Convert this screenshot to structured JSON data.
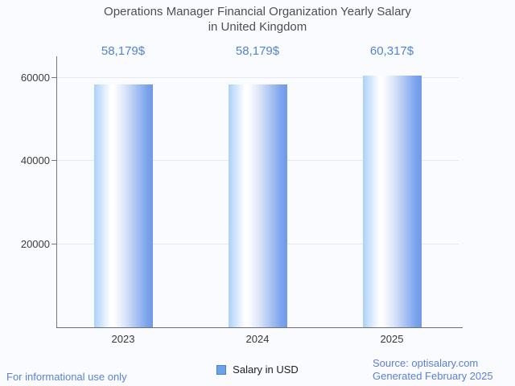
{
  "title": {
    "line1": "Operations Manager Financial Organization Yearly Salary",
    "line2": "in United Kingdom"
  },
  "chart_data": {
    "type": "bar",
    "title": "Operations Manager Financial Organization Yearly Salary in United Kingdom",
    "categories": [
      "2023",
      "2024",
      "2025"
    ],
    "values": [
      58179,
      58179,
      60317
    ],
    "value_labels": [
      "58,179$",
      "58,179$",
      "60,317$"
    ],
    "series_name": "Salary in USD",
    "xlabel": "",
    "ylabel": "",
    "ylim": [
      0,
      65000
    ],
    "yticks": [
      20000,
      40000,
      60000
    ],
    "ytick_labels": [
      "20000",
      "40000",
      "60000"
    ],
    "grid": true,
    "legend": {
      "label": "Salary in USD",
      "position": "bottom"
    },
    "colors": {
      "bar_gradient": [
        "#abd1f8",
        "#ffffff",
        "#7aa3ec"
      ],
      "value_label": "#5283d1",
      "legend_swatch_fill": "#6ba3ea",
      "legend_swatch_border": "#4e7ec7",
      "gridline": "#e6e8ee",
      "axis_line": "#787878",
      "title_text": "#4e4e50",
      "tick_text": "#3c3c3c"
    }
  },
  "footer": {
    "left": "For informational use only",
    "source": "Source: optisalary.com",
    "generated": "Generated February 2025"
  }
}
